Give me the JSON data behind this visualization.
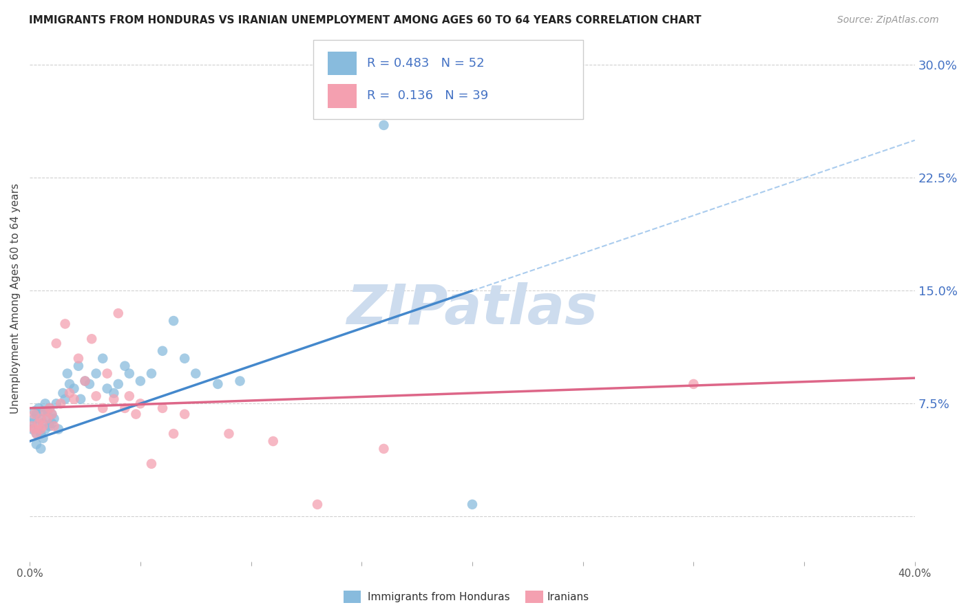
{
  "title": "IMMIGRANTS FROM HONDURAS VS IRANIAN UNEMPLOYMENT AMONG AGES 60 TO 64 YEARS CORRELATION CHART",
  "source": "Source: ZipAtlas.com",
  "ylabel": "Unemployment Among Ages 60 to 64 years",
  "xlim": [
    0.0,
    0.4
  ],
  "ylim": [
    -0.03,
    0.32
  ],
  "xticks": [
    0.0,
    0.05,
    0.1,
    0.15,
    0.2,
    0.25,
    0.3,
    0.35,
    0.4
  ],
  "ytick_positions": [
    0.0,
    0.075,
    0.15,
    0.225,
    0.3
  ],
  "yticklabels_right": [
    "",
    "7.5%",
    "15.0%",
    "22.5%",
    "30.0%"
  ],
  "grid_color": "#d0d0d0",
  "background_color": "#ffffff",
  "watermark": "ZIPatlas",
  "watermark_color": "#cddcee",
  "blue_R": "0.483",
  "blue_N": "52",
  "pink_R": "0.136",
  "pink_N": "39",
  "blue_color": "#88bbdd",
  "pink_color": "#f4a0b0",
  "blue_line_color": "#4488cc",
  "pink_line_color": "#dd6688",
  "blue_dash_color": "#aaccee",
  "legend_label_blue": "Immigrants from Honduras",
  "legend_label_pink": "Iranians",
  "blue_line_x0": 0.0,
  "blue_line_y0": 0.05,
  "blue_line_x1": 0.2,
  "blue_line_y1": 0.15,
  "pink_line_x0": 0.0,
  "pink_line_y0": 0.072,
  "pink_line_x1": 0.4,
  "pink_line_y1": 0.092,
  "blue_x": [
    0.001,
    0.001,
    0.002,
    0.002,
    0.003,
    0.003,
    0.003,
    0.004,
    0.004,
    0.005,
    0.005,
    0.005,
    0.006,
    0.006,
    0.006,
    0.007,
    0.007,
    0.008,
    0.008,
    0.009,
    0.009,
    0.01,
    0.01,
    0.011,
    0.012,
    0.013,
    0.015,
    0.016,
    0.017,
    0.018,
    0.02,
    0.022,
    0.023,
    0.025,
    0.027,
    0.03,
    0.033,
    0.035,
    0.038,
    0.04,
    0.043,
    0.045,
    0.05,
    0.055,
    0.06,
    0.065,
    0.07,
    0.075,
    0.085,
    0.095,
    0.16,
    0.2
  ],
  "blue_y": [
    0.062,
    0.058,
    0.065,
    0.07,
    0.068,
    0.055,
    0.048,
    0.06,
    0.072,
    0.065,
    0.055,
    0.045,
    0.07,
    0.062,
    0.052,
    0.075,
    0.058,
    0.065,
    0.07,
    0.072,
    0.06,
    0.068,
    0.062,
    0.065,
    0.075,
    0.058,
    0.082,
    0.078,
    0.095,
    0.088,
    0.085,
    0.1,
    0.078,
    0.09,
    0.088,
    0.095,
    0.105,
    0.085,
    0.082,
    0.088,
    0.1,
    0.095,
    0.09,
    0.095,
    0.11,
    0.13,
    0.105,
    0.095,
    0.088,
    0.09,
    0.26,
    0.008
  ],
  "pink_x": [
    0.001,
    0.002,
    0.002,
    0.003,
    0.004,
    0.005,
    0.005,
    0.006,
    0.007,
    0.008,
    0.009,
    0.01,
    0.011,
    0.012,
    0.014,
    0.016,
    0.018,
    0.02,
    0.022,
    0.025,
    0.028,
    0.03,
    0.033,
    0.035,
    0.038,
    0.04,
    0.043,
    0.045,
    0.048,
    0.05,
    0.055,
    0.06,
    0.065,
    0.07,
    0.09,
    0.11,
    0.13,
    0.16,
    0.3
  ],
  "pink_y": [
    0.06,
    0.068,
    0.058,
    0.055,
    0.062,
    0.065,
    0.058,
    0.06,
    0.07,
    0.065,
    0.072,
    0.068,
    0.06,
    0.115,
    0.075,
    0.128,
    0.082,
    0.078,
    0.105,
    0.09,
    0.118,
    0.08,
    0.072,
    0.095,
    0.078,
    0.135,
    0.072,
    0.08,
    0.068,
    0.075,
    0.035,
    0.072,
    0.055,
    0.068,
    0.055,
    0.05,
    0.008,
    0.045,
    0.088
  ]
}
